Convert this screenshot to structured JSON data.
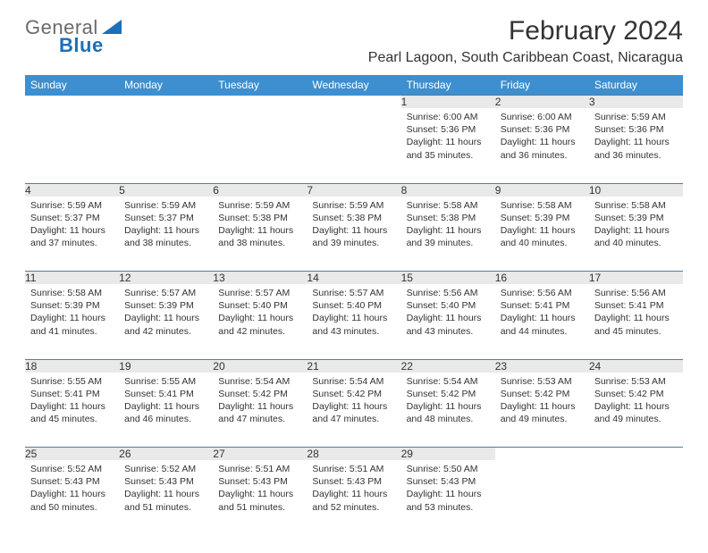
{
  "logo": {
    "text1": "General",
    "text2": "Blue"
  },
  "title": "February 2024",
  "location": "Pearl Lagoon, South Caribbean Coast, Nicaragua",
  "colors": {
    "header_bg": "#3d8fcf",
    "header_text": "#ffffff",
    "daynum_bg": "#e9e9e9",
    "daynum_border": "#5a7a94",
    "text": "#333333",
    "logo_gray": "#6b6b6b",
    "logo_blue": "#1d6fb8",
    "page_bg": "#ffffff"
  },
  "daysOfWeek": [
    "Sunday",
    "Monday",
    "Tuesday",
    "Wednesday",
    "Thursday",
    "Friday",
    "Saturday"
  ],
  "weeks": [
    [
      null,
      null,
      null,
      null,
      {
        "n": "1",
        "sunrise": "6:00 AM",
        "sunset": "5:36 PM",
        "daylight": "11 hours and 35 minutes."
      },
      {
        "n": "2",
        "sunrise": "6:00 AM",
        "sunset": "5:36 PM",
        "daylight": "11 hours and 36 minutes."
      },
      {
        "n": "3",
        "sunrise": "5:59 AM",
        "sunset": "5:36 PM",
        "daylight": "11 hours and 36 minutes."
      }
    ],
    [
      {
        "n": "4",
        "sunrise": "5:59 AM",
        "sunset": "5:37 PM",
        "daylight": "11 hours and 37 minutes."
      },
      {
        "n": "5",
        "sunrise": "5:59 AM",
        "sunset": "5:37 PM",
        "daylight": "11 hours and 38 minutes."
      },
      {
        "n": "6",
        "sunrise": "5:59 AM",
        "sunset": "5:38 PM",
        "daylight": "11 hours and 38 minutes."
      },
      {
        "n": "7",
        "sunrise": "5:59 AM",
        "sunset": "5:38 PM",
        "daylight": "11 hours and 39 minutes."
      },
      {
        "n": "8",
        "sunrise": "5:58 AM",
        "sunset": "5:38 PM",
        "daylight": "11 hours and 39 minutes."
      },
      {
        "n": "9",
        "sunrise": "5:58 AM",
        "sunset": "5:39 PM",
        "daylight": "11 hours and 40 minutes."
      },
      {
        "n": "10",
        "sunrise": "5:58 AM",
        "sunset": "5:39 PM",
        "daylight": "11 hours and 40 minutes."
      }
    ],
    [
      {
        "n": "11",
        "sunrise": "5:58 AM",
        "sunset": "5:39 PM",
        "daylight": "11 hours and 41 minutes."
      },
      {
        "n": "12",
        "sunrise": "5:57 AM",
        "sunset": "5:39 PM",
        "daylight": "11 hours and 42 minutes."
      },
      {
        "n": "13",
        "sunrise": "5:57 AM",
        "sunset": "5:40 PM",
        "daylight": "11 hours and 42 minutes."
      },
      {
        "n": "14",
        "sunrise": "5:57 AM",
        "sunset": "5:40 PM",
        "daylight": "11 hours and 43 minutes."
      },
      {
        "n": "15",
        "sunrise": "5:56 AM",
        "sunset": "5:40 PM",
        "daylight": "11 hours and 43 minutes."
      },
      {
        "n": "16",
        "sunrise": "5:56 AM",
        "sunset": "5:41 PM",
        "daylight": "11 hours and 44 minutes."
      },
      {
        "n": "17",
        "sunrise": "5:56 AM",
        "sunset": "5:41 PM",
        "daylight": "11 hours and 45 minutes."
      }
    ],
    [
      {
        "n": "18",
        "sunrise": "5:55 AM",
        "sunset": "5:41 PM",
        "daylight": "11 hours and 45 minutes."
      },
      {
        "n": "19",
        "sunrise": "5:55 AM",
        "sunset": "5:41 PM",
        "daylight": "11 hours and 46 minutes."
      },
      {
        "n": "20",
        "sunrise": "5:54 AM",
        "sunset": "5:42 PM",
        "daylight": "11 hours and 47 minutes."
      },
      {
        "n": "21",
        "sunrise": "5:54 AM",
        "sunset": "5:42 PM",
        "daylight": "11 hours and 47 minutes."
      },
      {
        "n": "22",
        "sunrise": "5:54 AM",
        "sunset": "5:42 PM",
        "daylight": "11 hours and 48 minutes."
      },
      {
        "n": "23",
        "sunrise": "5:53 AM",
        "sunset": "5:42 PM",
        "daylight": "11 hours and 49 minutes."
      },
      {
        "n": "24",
        "sunrise": "5:53 AM",
        "sunset": "5:42 PM",
        "daylight": "11 hours and 49 minutes."
      }
    ],
    [
      {
        "n": "25",
        "sunrise": "5:52 AM",
        "sunset": "5:43 PM",
        "daylight": "11 hours and 50 minutes."
      },
      {
        "n": "26",
        "sunrise": "5:52 AM",
        "sunset": "5:43 PM",
        "daylight": "11 hours and 51 minutes."
      },
      {
        "n": "27",
        "sunrise": "5:51 AM",
        "sunset": "5:43 PM",
        "daylight": "11 hours and 51 minutes."
      },
      {
        "n": "28",
        "sunrise": "5:51 AM",
        "sunset": "5:43 PM",
        "daylight": "11 hours and 52 minutes."
      },
      {
        "n": "29",
        "sunrise": "5:50 AM",
        "sunset": "5:43 PM",
        "daylight": "11 hours and 53 minutes."
      },
      null,
      null
    ]
  ],
  "labels": {
    "sunrise": "Sunrise: ",
    "sunset": "Sunset: ",
    "daylight": "Daylight: "
  }
}
